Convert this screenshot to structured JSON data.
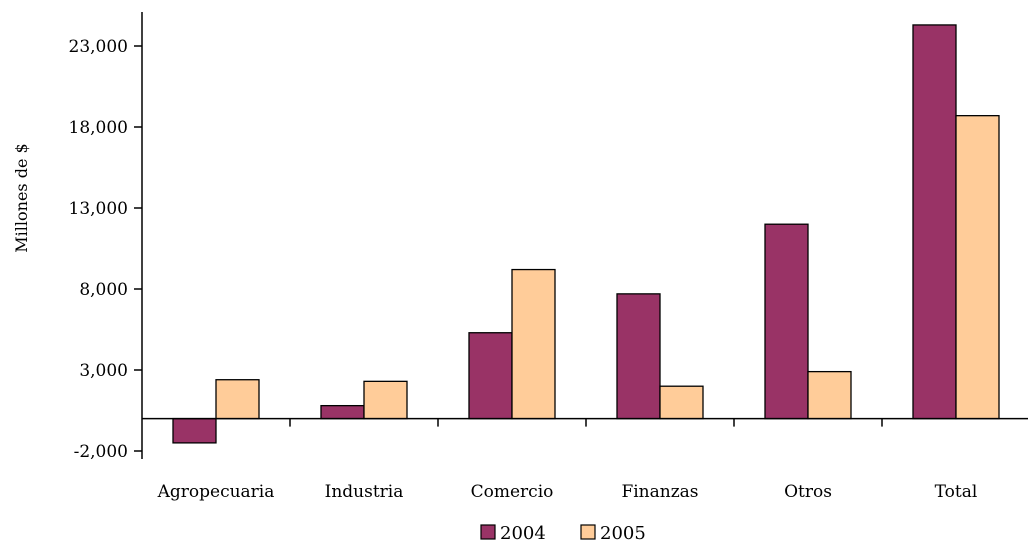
{
  "chart_data": {
    "type": "bar",
    "title": "",
    "xlabel": "",
    "ylabel": "Millones de $",
    "categories": [
      "Agropecuaria",
      "Industria",
      "Comercio",
      "Finanzas",
      "Otros",
      "Total"
    ],
    "series": [
      {
        "name": "2004",
        "color": "#993366",
        "values": [
          -1500,
          800,
          5300,
          7700,
          12000,
          24300
        ]
      },
      {
        "name": "2005",
        "color": "#FFCC99",
        "values": [
          2400,
          2300,
          9200,
          2000,
          2900,
          18700
        ]
      }
    ],
    "ylim": [
      -2000,
      25000
    ],
    "yticks": [
      -2000,
      3000,
      8000,
      13000,
      18000,
      23000
    ],
    "ytick_labels": [
      "-2,000",
      "3,000",
      "8,000",
      "13,000",
      "18,000",
      "23,000"
    ],
    "grid": false,
    "legend_position": "bottom-center"
  }
}
